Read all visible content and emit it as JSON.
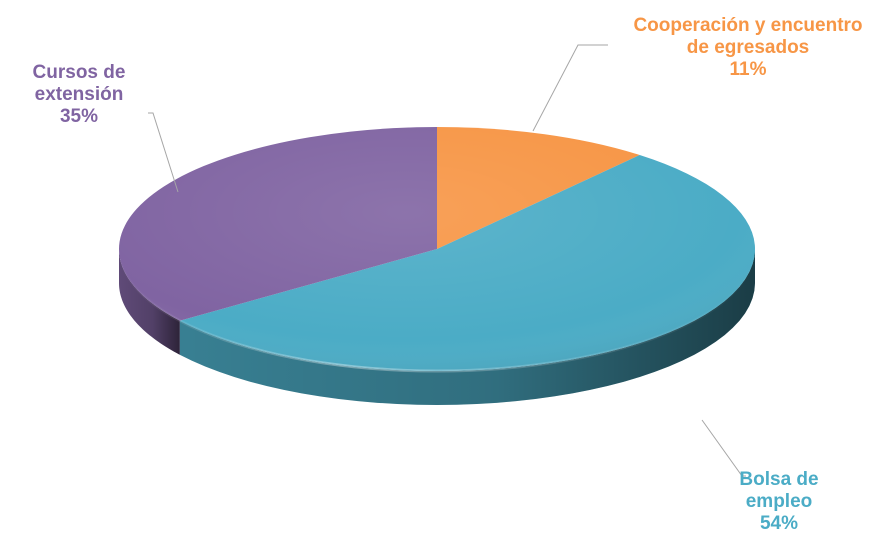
{
  "chart_data": {
    "type": "pie",
    "style": "3d",
    "title": "",
    "legend": "none",
    "slices": [
      {
        "label": "Cooperación y encuentro de egresados",
        "label_lines": [
          "Cooperación y encuentro",
          "de egresados"
        ],
        "value": 11,
        "value_label": "11%",
        "color": "#F79646"
      },
      {
        "label": "Bolsa de empleo",
        "label_lines": [
          "Bolsa de",
          "empleo"
        ],
        "value": 54,
        "value_label": "54%",
        "color": "#4BACC6"
      },
      {
        "label": "Cursos de extensión",
        "label_lines": [
          "Cursos de",
          "extensión"
        ],
        "value": 35,
        "value_label": "35%",
        "color": "#8064A2"
      }
    ]
  }
}
